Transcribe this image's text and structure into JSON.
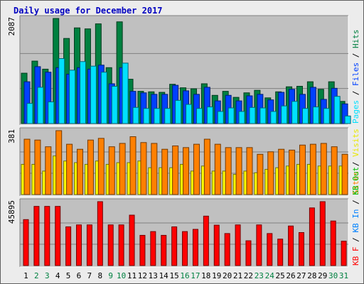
{
  "chart_data": [
    {
      "type": "bar",
      "title": "Daily usage for December 2017",
      "categories": [
        "1",
        "2",
        "3",
        "4",
        "5",
        "6",
        "7",
        "8",
        "9",
        "10",
        "11",
        "12",
        "13",
        "14",
        "15",
        "16",
        "17",
        "18",
        "19",
        "20",
        "21",
        "22",
        "23",
        "24",
        "25",
        "26",
        "27",
        "28",
        "29",
        "30",
        "31"
      ],
      "weekend_categories": [
        "2",
        "3",
        "9",
        "10",
        "16",
        "17",
        "23",
        "24",
        "30",
        "31"
      ],
      "ymax_label": "2087",
      "ylim": [
        0,
        2087
      ],
      "series": [
        {
          "name": "Hits",
          "color": "#008040",
          "values": [
            1000,
            1240,
            1080,
            2087,
            1690,
            1900,
            1880,
            1980,
            1110,
            2020,
            880,
            640,
            630,
            620,
            780,
            710,
            690,
            790,
            560,
            640,
            520,
            610,
            660,
            510,
            630,
            730,
            740,
            830,
            680,
            830,
            440
          ]
        },
        {
          "name": "Files",
          "color": "#0040ff",
          "values": [
            830,
            1130,
            1020,
            1110,
            980,
            1110,
            1080,
            1160,
            790,
            1110,
            640,
            610,
            580,
            580,
            760,
            650,
            580,
            720,
            450,
            560,
            450,
            550,
            580,
            470,
            620,
            680,
            580,
            720,
            480,
            700,
            390
          ]
        },
        {
          "name": "Pages",
          "color": "#00e0ff",
          "values": [
            400,
            720,
            430,
            1290,
            1060,
            1230,
            1140,
            1020,
            740,
            1200,
            320,
            300,
            300,
            300,
            460,
            380,
            300,
            330,
            240,
            310,
            240,
            320,
            310,
            240,
            350,
            440,
            300,
            330,
            300,
            540,
            150
          ]
        }
      ]
    },
    {
      "type": "bar",
      "ymax_label": "381",
      "ylim": [
        0,
        381
      ],
      "series": [
        {
          "name": "Visits",
          "color": "#ffff00",
          "values": [
            180,
            180,
            140,
            230,
            200,
            190,
            180,
            200,
            180,
            190,
            190,
            200,
            160,
            160,
            160,
            180,
            140,
            170,
            140,
            140,
            120,
            140,
            130,
            150,
            160,
            170,
            180,
            180,
            170,
            170,
            170
          ]
        },
        {
          "name": "Sites",
          "color": "#ff8000",
          "values": [
            330,
            325,
            285,
            381,
            300,
            270,
            325,
            335,
            285,
            305,
            345,
            310,
            305,
            270,
            290,
            280,
            300,
            330,
            300,
            280,
            280,
            280,
            240,
            255,
            270,
            265,
            295,
            300,
            305,
            285,
            240
          ]
        }
      ]
    },
    {
      "type": "bar",
      "ymax_label": "45895",
      "ylim": [
        0,
        45895
      ],
      "series": [
        {
          "name": "KB Out",
          "color": "#00c000",
          "values": []
        },
        {
          "name": "KB In",
          "color": "#0080ff",
          "values": []
        },
        {
          "name": "KB F",
          "color": "#ff0000",
          "values": [
            33000,
            42500,
            42500,
            42500,
            27800,
            29200,
            29200,
            45895,
            29200,
            29200,
            36200,
            21700,
            24400,
            21700,
            27800,
            24400,
            26000,
            35500,
            29000,
            23000,
            29200,
            17800,
            29200,
            23000,
            19000,
            28400,
            23700,
            41400,
            45895,
            32000,
            17500
          ]
        }
      ]
    }
  ]
}
